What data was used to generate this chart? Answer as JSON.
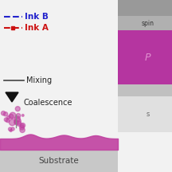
{
  "bg_color": "#f2f2f2",
  "legend_ink_b_color": "#2222cc",
  "legend_ink_a_color": "#cc1111",
  "legend_mixing_color": "#444444",
  "substrate_color": "#c8c8c8",
  "substrate_label": "Substrate",
  "substrate_label_color": "#444444",
  "film_color": "#c040a0",
  "film_alpha": 0.9,
  "droplet_color": "#c040a0",
  "droplet_alpha": 0.55,
  "coalescence_label": "Coalescence",
  "mixing_label": "Mixing",
  "ink_b_label": "Ink B",
  "ink_a_label": "Ink A",
  "right_top_color": "#888888",
  "right_mid_color": "#b535a0",
  "right_mid_label_color": "#e090d0",
  "right_bot1_color": "#c0c0c0",
  "right_bot2_color": "#e0e0e0",
  "right_spin_label": "spin",
  "right_p_label": "P",
  "right_s_label": "s"
}
